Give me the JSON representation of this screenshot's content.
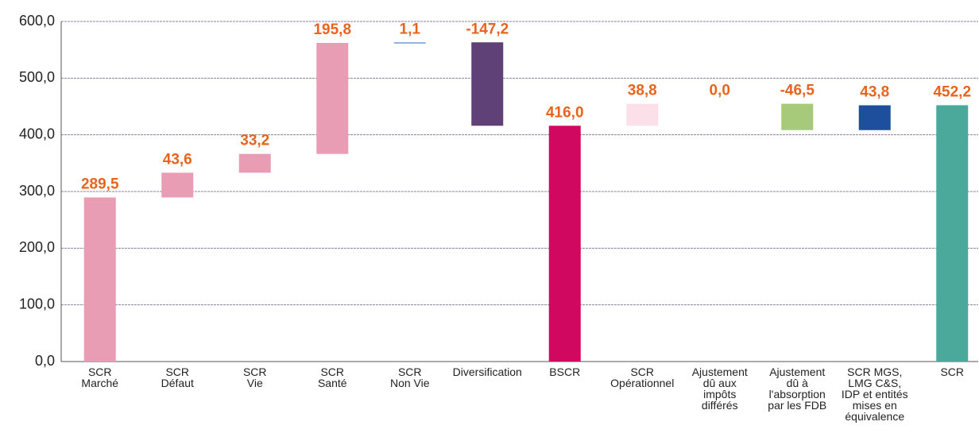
{
  "chart_data": {
    "type": "waterfall",
    "categories": [
      "SCR\nMarché",
      "SCR\nDéfaut",
      "SCR\nVie",
      "SCR\nSanté",
      "SCR\nNon Vie",
      "Diversification",
      "BSCR",
      "SCR\nOpérationnel",
      "Ajustement\ndû aux\nimpôts\ndifférés",
      "Ajustement\ndû à\nl'absorption\npar les FDB",
      "SCR MGS,\nLMG C&S,\nIDP et entités\nmises en\néquivalence",
      "SCR"
    ],
    "values": [
      289.5,
      43.6,
      33.2,
      195.8,
      1.1,
      -147.2,
      416.0,
      38.8,
      0.0,
      -46.5,
      43.8,
      452.2
    ],
    "value_labels": [
      "289,5",
      "43,6",
      "33,2",
      "195,8",
      "1,1",
      "-147,2",
      "416,0",
      "38,8",
      "0,0",
      "-46,5",
      "43,8",
      "452,2"
    ],
    "is_total": [
      false,
      false,
      false,
      false,
      false,
      false,
      true,
      false,
      false,
      false,
      false,
      true
    ],
    "colors": [
      "#e89db5",
      "#e89db5",
      "#e89db5",
      "#e89db5",
      "#6a9fd4",
      "#5f4077",
      "#d0085f",
      "#fbe0ea",
      "#cccccc",
      "#a6c97a",
      "#1d4f9c",
      "#4aa99a"
    ],
    "ylim": [
      0,
      600
    ],
    "yticks": [
      {
        "value": 0,
        "label": "0,0"
      },
      {
        "value": 100,
        "label": "100,0"
      },
      {
        "value": 200,
        "label": "200,0"
      },
      {
        "value": 300,
        "label": "300,0"
      },
      {
        "value": 400,
        "label": "400,0"
      },
      {
        "value": 500,
        "label": "500,0"
      },
      {
        "value": 600,
        "label": "600,0"
      }
    ],
    "grid": true
  }
}
